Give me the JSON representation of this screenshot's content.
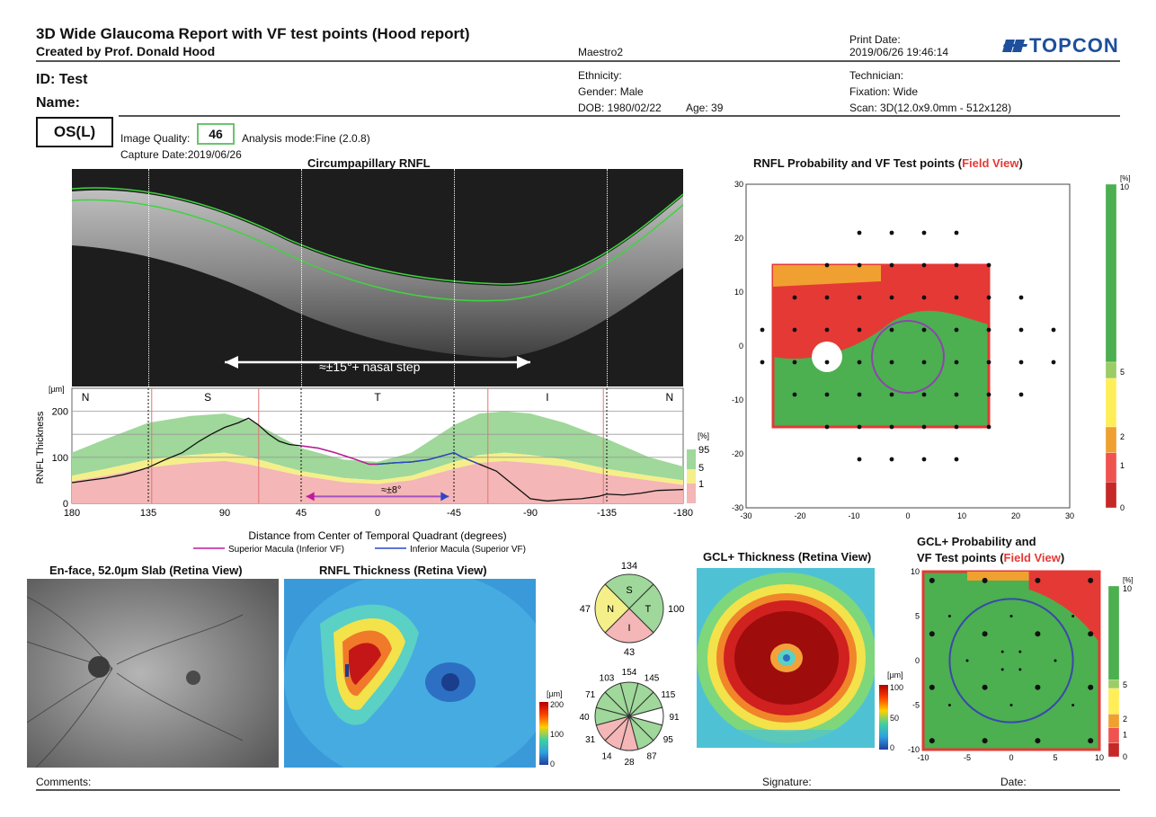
{
  "header": {
    "title": "3D Wide Glaucoma Report with VF test points (Hood report)",
    "creator": "Created by Prof. Donald Hood",
    "device": "Maestro2",
    "print_date_label": "Print Date:",
    "print_date": "2019/06/26 19:46:14",
    "logo": "TOPCON"
  },
  "patient": {
    "id": "ID: Test",
    "name": "Name:",
    "ethnicity": "Ethnicity:",
    "gender": "Gender: Male",
    "dob": "DOB: 1980/02/22",
    "age": "Age: 39",
    "technician": "Technician:",
    "fixation": "Fixation: Wide",
    "scan": "Scan: 3D(12.0x9.0mm - 512x128)"
  },
  "exam": {
    "eye": "OS(L)",
    "image_quality_label": "Image Quality:",
    "image_quality_value": "46",
    "analysis_mode": "Analysis mode:Fine (2.0.8)",
    "capture_date": "Capture Date:2019/06/26"
  },
  "panels": {
    "circ_title": "Circumpapillary RNFL",
    "nasal_step": "≈±15°+ nasal step",
    "rnfl_prob_title": "RNFL Probability and VF Test points (",
    "field_view": "Field View",
    "close_paren": ")",
    "enface_title": "En-face, 52.0µm Slab (Retina View)",
    "rnfl_thick_title": "RNFL Thickness (Retina View)",
    "gcl_thick_title": "GCL+ Thickness (Retina View)",
    "gcl_prob_title_1": "GCL+ Probability and",
    "gcl_prob_title_2": "VF Test points (",
    "rnfl_scale_unit": "[µm]",
    "rnfl_scale": [
      "200",
      "100",
      "0"
    ],
    "gcl_scale_unit": "[µm]",
    "gcl_scale": [
      "100",
      "50",
      "0"
    ],
    "prob_unit": "[%]",
    "prob_ticks": [
      "10",
      "5",
      "2",
      "1",
      "0"
    ]
  },
  "chart_data": [
    {
      "type": "area",
      "ylabel": "RNFL Thickness",
      "yunit": "[µm]",
      "xlabel": "Distance from Center of Temporal Quadrant (degrees)",
      "x_ticks": [
        "180",
        "135",
        "90",
        "45",
        "0",
        "-45",
        "-90",
        "-135",
        "-180"
      ],
      "y_ticks": [
        "200",
        "100",
        "0"
      ],
      "sectors": [
        "N",
        "S",
        "T",
        "I",
        "N"
      ],
      "legend_unit": "[%]",
      "legend": [
        "95",
        "5",
        "1"
      ],
      "legend_extra": [
        "Superior Macula (Inferior VF)",
        "Inferior Macula (Superior VF)"
      ],
      "annotation": "≈±8°",
      "xlim": [
        180,
        -180
      ],
      "ylim": [
        0,
        250
      ],
      "series": [
        {
          "name": "Superior Macula (Inferior VF)",
          "x": [
            45,
            35,
            25,
            15,
            5,
            0
          ],
          "values": [
            125,
            120,
            110,
            98,
            85,
            85
          ]
        },
        {
          "name": "Inferior Macula (Superior VF)",
          "x": [
            0,
            -10,
            -20,
            -30,
            -40,
            -45,
            -50,
            -60
          ],
          "values": [
            85,
            88,
            90,
            95,
            105,
            110,
            100,
            85
          ]
        }
      ],
      "measured": {
        "x": [
          180,
          170,
          160,
          150,
          140,
          135,
          125,
          115,
          105,
          98,
          90,
          82,
          76,
          70,
          64,
          58,
          52,
          45,
          35,
          25,
          15,
          5,
          0,
          -10,
          -20,
          -30,
          -40,
          -45,
          -50,
          -60,
          -70,
          -80,
          -90,
          -100,
          -110,
          -120,
          -130,
          -135,
          -145,
          -155,
          -165,
          -180
        ],
        "values": [
          45,
          50,
          55,
          62,
          72,
          78,
          95,
          110,
          135,
          150,
          165,
          175,
          185,
          170,
          150,
          135,
          128,
          125,
          120,
          110,
          98,
          85,
          85,
          88,
          90,
          95,
          105,
          110,
          100,
          85,
          70,
          40,
          10,
          5,
          8,
          10,
          15,
          20,
          18,
          22,
          28,
          30
        ]
      },
      "bands": {
        "x": [
          180,
          160,
          135,
          110,
          90,
          75,
          60,
          45,
          20,
          0,
          -20,
          -45,
          -60,
          -75,
          -90,
          -110,
          -135,
          -160,
          -180
        ],
        "p95": [
          110,
          140,
          175,
          190,
          195,
          180,
          150,
          120,
          95,
          90,
          110,
          170,
          195,
          200,
          195,
          175,
          140,
          100,
          80
        ],
        "p5": [
          60,
          75,
          95,
          105,
          110,
          100,
          85,
          70,
          55,
          50,
          60,
          90,
          105,
          110,
          105,
          95,
          75,
          60,
          50
        ],
        "p1": [
          48,
          60,
          78,
          88,
          92,
          84,
          72,
          60,
          46,
          42,
          50,
          75,
          88,
          92,
          88,
          80,
          62,
          50,
          40
        ]
      }
    },
    {
      "type": "scatter",
      "title": "RNFL Probability and VF Test points (Field View)",
      "xlim": [
        -30,
        30
      ],
      "ylim": [
        -30,
        30
      ],
      "x_ticks": [
        "-30",
        "-20",
        "-10",
        "0",
        "10",
        "20",
        "30"
      ],
      "y_ticks": [
        "30",
        "20",
        "10",
        "0",
        "-10",
        "-20",
        "-30"
      ]
    },
    {
      "type": "scatter",
      "title": "GCL+ Probability and VF Test points (Field View)",
      "xlim": [
        -10,
        10
      ],
      "ylim": [
        -10,
        10
      ],
      "x_ticks": [
        "-10",
        "-5",
        "0",
        "5",
        "10"
      ],
      "y_ticks": [
        "10",
        "5",
        "0",
        "-5",
        "-10"
      ]
    }
  ],
  "sectors_quadrant": {
    "S": "134",
    "T": "100",
    "I": "43",
    "N": "47"
  },
  "sectors_clock": [
    "154",
    "145",
    "115",
    "91",
    "95",
    "87",
    "28",
    "14",
    "31",
    "40",
    "71",
    "103"
  ],
  "footer": {
    "comments": "Comments:",
    "signature": "Signature:",
    "date": "Date:"
  },
  "colors": {
    "normal_green": "#4caf50",
    "borderline_yellow": "#f0e64a",
    "abnormal_red": "#e53935",
    "accent_red": "#d32f2f"
  }
}
